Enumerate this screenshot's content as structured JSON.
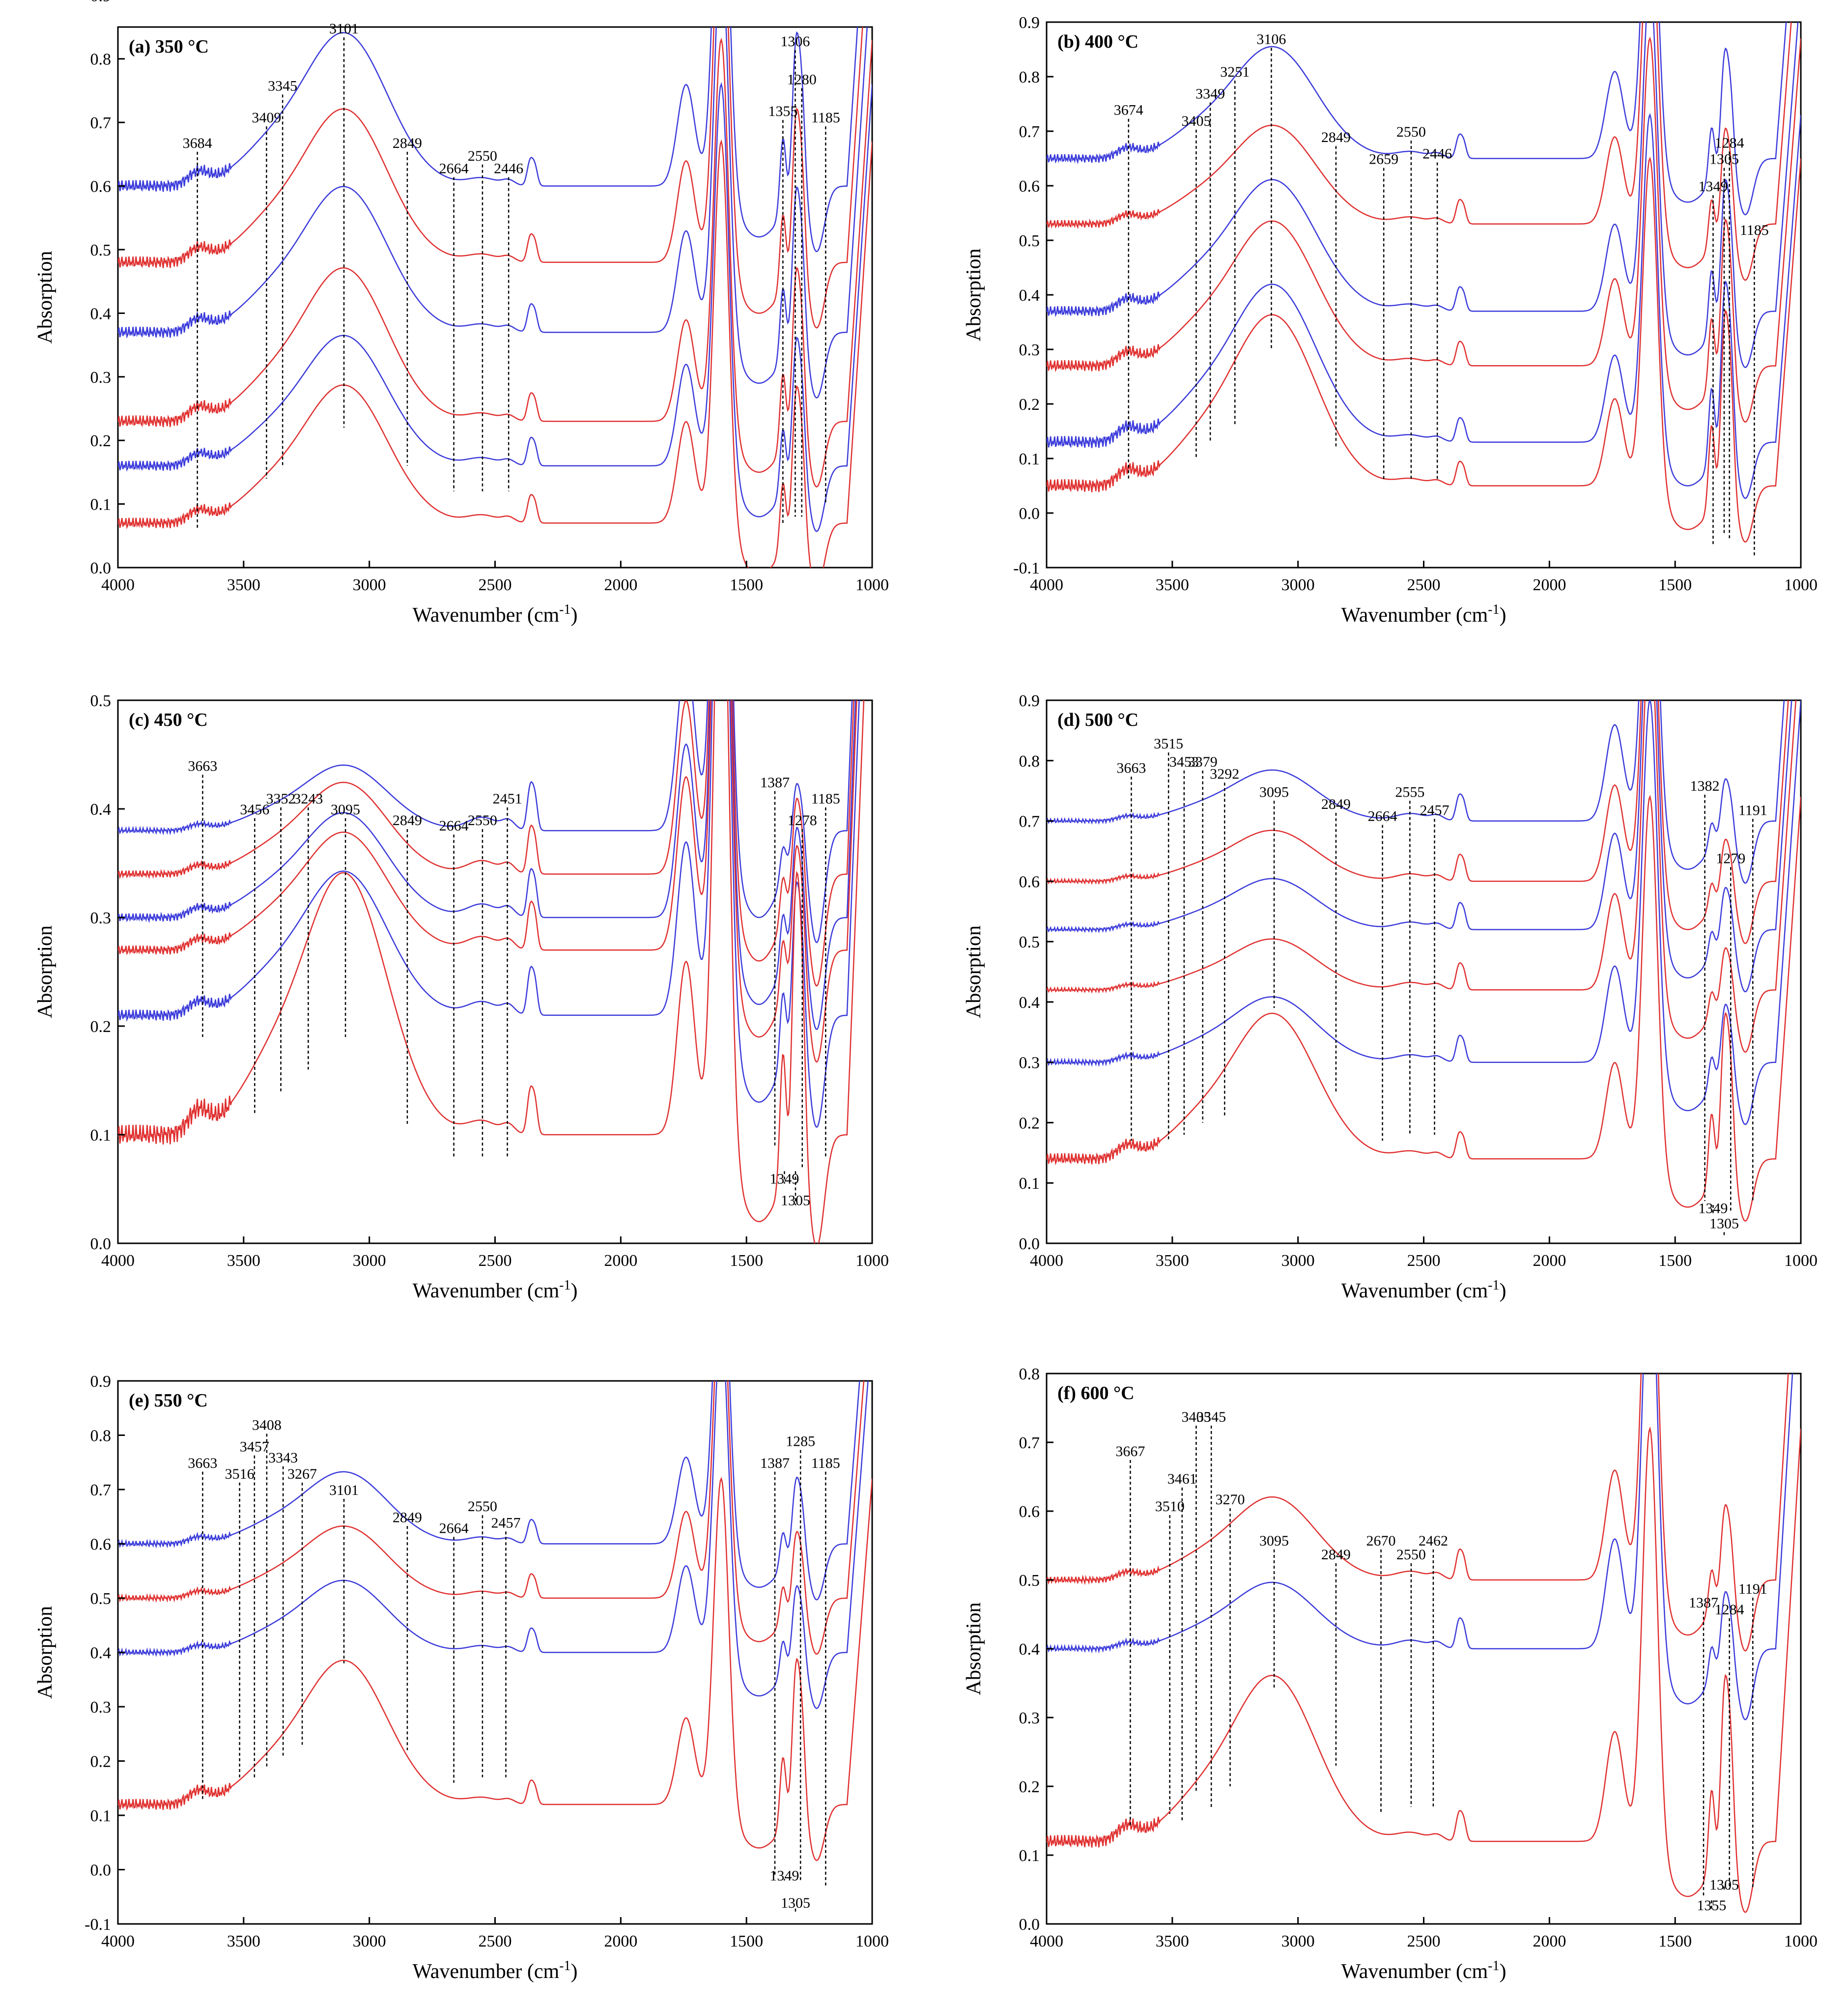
{
  "figure": {
    "xlabel": "Wavenumber (cm",
    "xlabel_sup": "-1",
    "xlabel_close": ")",
    "ylabel": "Absorption",
    "colors": {
      "blue": "#3b3bdb",
      "red": "#e03030",
      "guide": "#000000"
    }
  },
  "chart_data": [
    {
      "id": "a",
      "type": "line",
      "title": "(a) 350 °C",
      "xlim": [
        4000,
        1000
      ],
      "ylim": [
        0,
        0.85
      ],
      "ytick_step": 0.1,
      "ytick_decimals": 1,
      "xticks": [
        4000,
        3500,
        3000,
        2500,
        2000,
        1500,
        1000
      ],
      "series": [
        {
          "name": "a1",
          "color": "blue",
          "base": 0.6,
          "scale": 1.0
        },
        {
          "name": "a2",
          "color": "red",
          "base": 0.48,
          "scale": 1.0
        },
        {
          "name": "a3",
          "color": "blue",
          "base": 0.37,
          "scale": 0.95
        },
        {
          "name": "a4",
          "color": "red",
          "base": 0.23,
          "scale": 1.0
        },
        {
          "name": "a5",
          "color": "blue",
          "base": 0.16,
          "scale": 0.85
        },
        {
          "name": "a6",
          "color": "red",
          "base": 0.07,
          "scale": 0.9
        }
      ],
      "peaks": [
        {
          "x": 3684,
          "label": "3684",
          "ytext": 0.66,
          "ybottom": 0.06
        },
        {
          "x": 3409,
          "label": "3409",
          "ytext": 0.7,
          "ybottom": 0.14
        },
        {
          "x": 3345,
          "label": "3345",
          "ytext": 0.75,
          "ybottom": 0.16
        },
        {
          "x": 3101,
          "label": "3101",
          "ytext": 0.84,
          "ybottom": 0.22
        },
        {
          "x": 2849,
          "label": "2849",
          "ytext": 0.66,
          "ybottom": 0.16
        },
        {
          "x": 2664,
          "label": "2664",
          "ytext": 0.62,
          "ybottom": 0.12
        },
        {
          "x": 2550,
          "label": "2550",
          "ytext": 0.64,
          "ybottom": 0.12
        },
        {
          "x": 2446,
          "label": "2446",
          "ytext": 0.62,
          "ybottom": 0.12
        },
        {
          "x": 1355,
          "label": "1355",
          "ytext": 0.71,
          "ybottom": 0.07
        },
        {
          "x": 1306,
          "label": "1306",
          "ytext": 0.82,
          "ybottom": 0.08
        },
        {
          "x": 1280,
          "label": "1280",
          "ytext": 0.76,
          "ybottom": 0.08
        },
        {
          "x": 1185,
          "label": "1185",
          "ytext": 0.7,
          "ybottom": 0.1
        }
      ]
    },
    {
      "id": "b",
      "type": "line",
      "title": "(b) 400 °C",
      "xlim": [
        4000,
        1000
      ],
      "ylim": [
        -0.1,
        0.9
      ],
      "ytick_step": 0.1,
      "ytick_decimals": 1,
      "xticks": [
        4000,
        3500,
        3000,
        2500,
        2000,
        1500,
        1000
      ],
      "series": [
        {
          "name": "b1",
          "color": "blue",
          "base": 0.65,
          "scale": 0.85
        },
        {
          "name": "b2",
          "color": "red",
          "base": 0.53,
          "scale": 0.75
        },
        {
          "name": "b3",
          "color": "blue",
          "base": 0.37,
          "scale": 1.0
        },
        {
          "name": "b4",
          "color": "red",
          "base": 0.27,
          "scale": 1.1
        },
        {
          "name": "b5",
          "color": "blue",
          "base": 0.13,
          "scale": 1.2
        },
        {
          "name": "b6",
          "color": "red",
          "base": 0.05,
          "scale": 1.3
        }
      ],
      "peaks": [
        {
          "x": 3674,
          "label": "3674",
          "ytext": 0.73,
          "ybottom": 0.06
        },
        {
          "x": 3405,
          "label": "3405",
          "ytext": 0.71,
          "ybottom": 0.1
        },
        {
          "x": 3349,
          "label": "3349",
          "ytext": 0.76,
          "ybottom": 0.13
        },
        {
          "x": 3251,
          "label": "3251",
          "ytext": 0.8,
          "ybottom": 0.16
        },
        {
          "x": 3106,
          "label": "3106",
          "ytext": 0.86,
          "ybottom": 0.3
        },
        {
          "x": 2849,
          "label": "2849",
          "ytext": 0.68,
          "ybottom": 0.12
        },
        {
          "x": 2659,
          "label": "2659",
          "ytext": 0.64,
          "ybottom": 0.06
        },
        {
          "x": 2550,
          "label": "2550",
          "ytext": 0.69,
          "ybottom": 0.06
        },
        {
          "x": 2446,
          "label": "2446",
          "ytext": 0.65,
          "ybottom": 0.06
        },
        {
          "x": 1349,
          "label": "1349",
          "ytext": 0.59,
          "ybottom": -0.06
        },
        {
          "x": 1305,
          "label": "1305",
          "ytext": 0.64,
          "ybottom": -0.04
        },
        {
          "x": 1284,
          "label": "1284",
          "ytext": 0.67,
          "ybottom": -0.05
        },
        {
          "x": 1185,
          "label": "1185",
          "ytext": 0.51,
          "ybottom": -0.08
        }
      ]
    },
    {
      "id": "c",
      "type": "line",
      "title": "(c) 450 °C",
      "xlim": [
        4000,
        1000
      ],
      "ylim": [
        0,
        0.5
      ],
      "ytick_step": 0.1,
      "ytick_decimals": 1,
      "xticks": [
        4000,
        3500,
        3000,
        2500,
        2000,
        1500,
        1000
      ],
      "series": [
        {
          "name": "c1",
          "color": "blue",
          "base": 0.38,
          "scale": 0.25
        },
        {
          "name": "c2",
          "color": "red",
          "base": 0.34,
          "scale": 0.35
        },
        {
          "name": "c3",
          "color": "blue",
          "base": 0.3,
          "scale": 0.4
        },
        {
          "name": "c4",
          "color": "red",
          "base": 0.27,
          "scale": 0.45
        },
        {
          "name": "c5",
          "color": "blue",
          "base": 0.21,
          "scale": 0.55
        },
        {
          "name": "c6",
          "color": "red",
          "base": 0.1,
          "scale": 1.0
        }
      ],
      "peaks": [
        {
          "x": 3663,
          "label": "3663",
          "ytext": 0.435,
          "ybottom": 0.19
        },
        {
          "x": 3456,
          "label": "3456",
          "ytext": 0.395,
          "ybottom": 0.12
        },
        {
          "x": 3352,
          "label": "3352",
          "ytext": 0.405,
          "ybottom": 0.14
        },
        {
          "x": 3243,
          "label": "3243",
          "ytext": 0.405,
          "ybottom": 0.16
        },
        {
          "x": 3095,
          "label": "3095",
          "ytext": 0.395,
          "ybottom": 0.19
        },
        {
          "x": 2849,
          "label": "2849",
          "ytext": 0.385,
          "ybottom": 0.11
        },
        {
          "x": 2664,
          "label": "2664",
          "ytext": 0.38,
          "ybottom": 0.08
        },
        {
          "x": 2550,
          "label": "2550",
          "ytext": 0.385,
          "ybottom": 0.08
        },
        {
          "x": 2451,
          "label": "2451",
          "ytext": 0.405,
          "ybottom": 0.08
        },
        {
          "x": 1387,
          "label": "1387",
          "ytext": 0.42,
          "ybottom": 0.09
        },
        {
          "x": 1349,
          "label": "1349",
          "ytext": 0.055,
          "ybottom": 0.07
        },
        {
          "x": 1305,
          "label": "1305",
          "ytext": 0.035,
          "ybottom": 0.07
        },
        {
          "x": 1278,
          "label": "1278",
          "ytext": 0.385,
          "ybottom": 0.07
        },
        {
          "x": 1185,
          "label": "1185",
          "ytext": 0.405,
          "ybottom": 0.08
        }
      ]
    },
    {
      "id": "d",
      "type": "line",
      "title": "(d) 500 °C",
      "xlim": [
        4000,
        1000
      ],
      "ylim": [
        0,
        0.9
      ],
      "ytick_step": 0.1,
      "ytick_decimals": 1,
      "xticks": [
        4000,
        3500,
        3000,
        2500,
        2000,
        1500,
        1000
      ],
      "series": [
        {
          "name": "d1",
          "color": "blue",
          "base": 0.7,
          "scale": 0.35
        },
        {
          "name": "d2",
          "color": "red",
          "base": 0.6,
          "scale": 0.35
        },
        {
          "name": "d3",
          "color": "blue",
          "base": 0.52,
          "scale": 0.35
        },
        {
          "name": "d4",
          "color": "red",
          "base": 0.42,
          "scale": 0.35
        },
        {
          "name": "d5",
          "color": "blue",
          "base": 0.3,
          "scale": 0.45
        },
        {
          "name": "d6",
          "color": "red",
          "base": 0.14,
          "scale": 1.0
        }
      ],
      "peaks": [
        {
          "x": 3663,
          "label": "3663",
          "ytext": 0.78,
          "ybottom": 0.17
        },
        {
          "x": 3515,
          "label": "3515",
          "ytext": 0.82,
          "ybottom": 0.17
        },
        {
          "x": 3453,
          "label": "3453",
          "ytext": 0.79,
          "ybottom": 0.18
        },
        {
          "x": 3379,
          "label": "3379",
          "ytext": 0.79,
          "ybottom": 0.2
        },
        {
          "x": 3292,
          "label": "3292",
          "ytext": 0.77,
          "ybottom": 0.21
        },
        {
          "x": 3095,
          "label": "3095",
          "ytext": 0.74,
          "ybottom": 0.39
        },
        {
          "x": 2849,
          "label": "2849",
          "ytext": 0.72,
          "ybottom": 0.25
        },
        {
          "x": 2664,
          "label": "2664",
          "ytext": 0.7,
          "ybottom": 0.17
        },
        {
          "x": 2555,
          "label": "2555",
          "ytext": 0.74,
          "ybottom": 0.18
        },
        {
          "x": 2457,
          "label": "2457",
          "ytext": 0.71,
          "ybottom": 0.18
        },
        {
          "x": 1382,
          "label": "1382",
          "ytext": 0.75,
          "ybottom": 0.07
        },
        {
          "x": 1349,
          "label": "1349",
          "ytext": 0.05,
          "ybottom": 0.07
        },
        {
          "x": 1305,
          "label": "1305",
          "ytext": 0.025,
          "ybottom": 0.01
        },
        {
          "x": 1279,
          "label": "1279",
          "ytext": 0.63,
          "ybottom": 0.05
        },
        {
          "x": 1191,
          "label": "1191",
          "ytext": 0.71,
          "ybottom": 0.07
        }
      ]
    },
    {
      "id": "e",
      "type": "line",
      "title": "(e) 550 °C",
      "xlim": [
        4000,
        1000
      ],
      "ylim": [
        -0.1,
        0.9
      ],
      "ytick_step": 0.1,
      "ytick_decimals": 1,
      "xticks": [
        4000,
        3500,
        3000,
        2500,
        2000,
        1500,
        1000
      ],
      "series": [
        {
          "name": "e1",
          "color": "blue",
          "base": 0.6,
          "scale": 0.55
        },
        {
          "name": "e2",
          "color": "red",
          "base": 0.5,
          "scale": 0.55
        },
        {
          "name": "e3",
          "color": "blue",
          "base": 0.4,
          "scale": 0.55
        },
        {
          "name": "e4",
          "color": "red",
          "base": 0.12,
          "scale": 1.1
        }
      ],
      "peaks": [
        {
          "x": 3663,
          "label": "3663",
          "ytext": 0.74,
          "ybottom": 0.13
        },
        {
          "x": 3516,
          "label": "3516",
          "ytext": 0.72,
          "ybottom": 0.17
        },
        {
          "x": 3457,
          "label": "3457",
          "ytext": 0.77,
          "ybottom": 0.17
        },
        {
          "x": 3408,
          "label": "3408",
          "ytext": 0.81,
          "ybottom": 0.19
        },
        {
          "x": 3343,
          "label": "3343",
          "ytext": 0.75,
          "ybottom": 0.21
        },
        {
          "x": 3267,
          "label": "3267",
          "ytext": 0.72,
          "ybottom": 0.23
        },
        {
          "x": 3101,
          "label": "3101",
          "ytext": 0.69,
          "ybottom": 0.38
        },
        {
          "x": 2849,
          "label": "2849",
          "ytext": 0.64,
          "ybottom": 0.22
        },
        {
          "x": 2664,
          "label": "2664",
          "ytext": 0.62,
          "ybottom": 0.16
        },
        {
          "x": 2550,
          "label": "2550",
          "ytext": 0.66,
          "ybottom": 0.17
        },
        {
          "x": 2457,
          "label": "2457",
          "ytext": 0.63,
          "ybottom": 0.17
        },
        {
          "x": 1387,
          "label": "1387",
          "ytext": 0.74,
          "ybottom": -0.01
        },
        {
          "x": 1349,
          "label": "1349",
          "ytext": -0.02,
          "ybottom": -0.01
        },
        {
          "x": 1305,
          "label": "1305",
          "ytext": -0.07,
          "ybottom": -0.07
        },
        {
          "x": 1285,
          "label": "1285",
          "ytext": 0.78,
          "ybottom": -0.02
        },
        {
          "x": 1185,
          "label": "1185",
          "ytext": 0.74,
          "ybottom": -0.03
        }
      ]
    },
    {
      "id": "f",
      "type": "line",
      "title": "(f) 600 °C",
      "xlim": [
        4000,
        1000
      ],
      "ylim": [
        0,
        0.8
      ],
      "ytick_step": 0.1,
      "ytick_decimals": 1,
      "xticks": [
        4000,
        3500,
        3000,
        2500,
        2000,
        1500,
        1000
      ],
      "series": [
        {
          "name": "f1",
          "color": "red",
          "base": 0.5,
          "scale": 0.5
        },
        {
          "name": "f2",
          "color": "blue",
          "base": 0.4,
          "scale": 0.4
        },
        {
          "name": "f3",
          "color": "red",
          "base": 0.12,
          "scale": 1.0
        }
      ],
      "peaks": [
        {
          "x": 3667,
          "label": "3667",
          "ytext": 0.68,
          "ybottom": 0.14
        },
        {
          "x": 3510,
          "label": "3510",
          "ytext": 0.6,
          "ybottom": 0.16
        },
        {
          "x": 3461,
          "label": "3461",
          "ytext": 0.64,
          "ybottom": 0.15
        },
        {
          "x": 3405,
          "label": "3405",
          "ytext": 0.73,
          "ybottom": 0.19
        },
        {
          "x": 3345,
          "label": "3345",
          "ytext": 0.73,
          "ybottom": 0.17
        },
        {
          "x": 3270,
          "label": "3270",
          "ytext": 0.61,
          "ybottom": 0.2
        },
        {
          "x": 3095,
          "label": "3095",
          "ytext": 0.55,
          "ybottom": 0.34
        },
        {
          "x": 2849,
          "label": "2849",
          "ytext": 0.53,
          "ybottom": 0.23
        },
        {
          "x": 2670,
          "label": "2670",
          "ytext": 0.55,
          "ybottom": 0.16
        },
        {
          "x": 2550,
          "label": "2550",
          "ytext": 0.53,
          "ybottom": 0.17
        },
        {
          "x": 2462,
          "label": "2462",
          "ytext": 0.55,
          "ybottom": 0.17
        },
        {
          "x": 1387,
          "label": "1387",
          "ytext": 0.46,
          "ybottom": 0.04
        },
        {
          "x": 1355,
          "label": "1355",
          "ytext": 0.02,
          "ybottom": 0.04
        },
        {
          "x": 1305,
          "label": "1305",
          "ytext": 0.05,
          "ybottom": 0.06
        },
        {
          "x": 1284,
          "label": "1284",
          "ytext": 0.45,
          "ybottom": 0.05
        },
        {
          "x": 1191,
          "label": "1191",
          "ytext": 0.48,
          "ybottom": 0.05
        }
      ]
    }
  ]
}
